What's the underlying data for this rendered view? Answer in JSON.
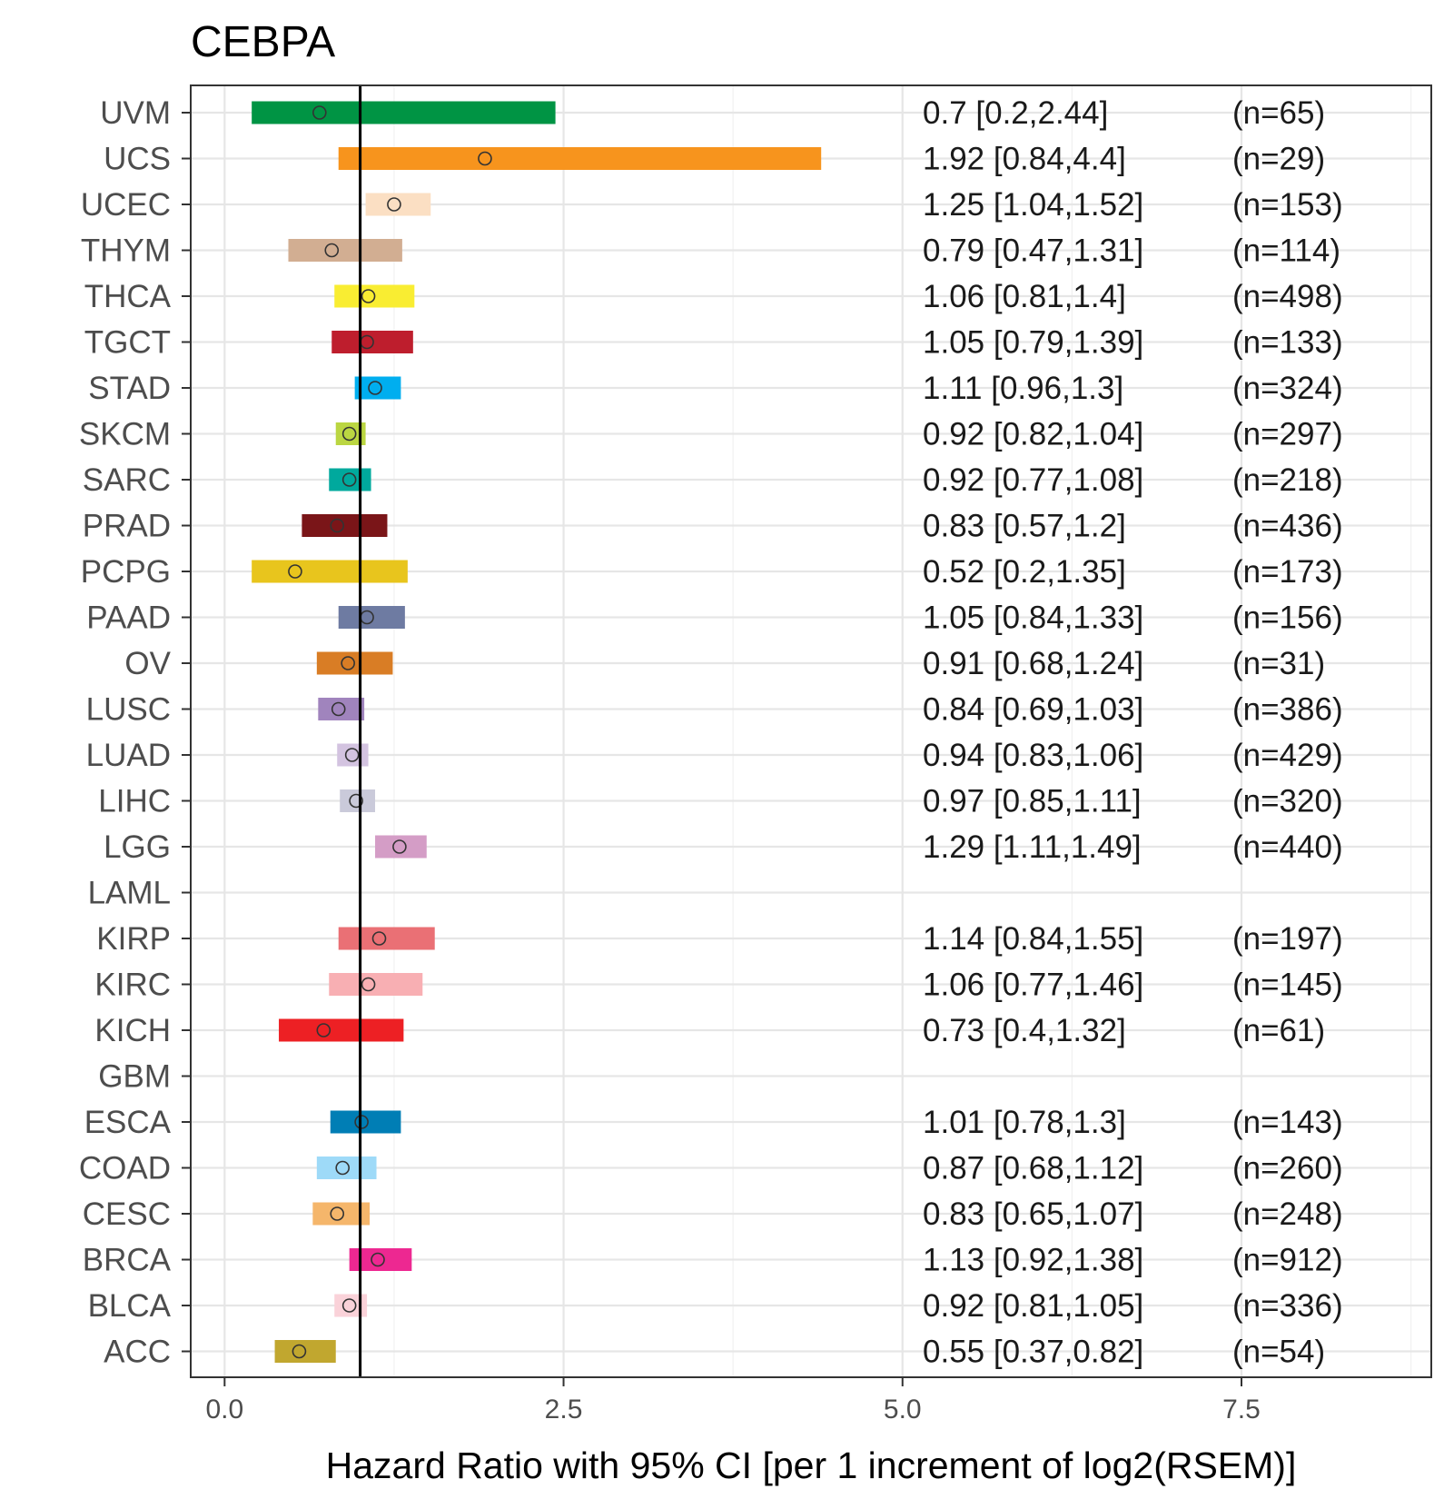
{
  "chart_data": {
    "type": "forest",
    "title": "CEBPA",
    "xlabel": "Hazard Ratio with 95% CI [per 1 increment of log2(RSEM)]",
    "ylabel": "",
    "xlim": [
      -0.25,
      8.9
    ],
    "xticks": [
      0.0,
      2.5,
      5.0,
      7.5
    ],
    "xtick_labels": [
      "0.0",
      "2.5",
      "5.0",
      "7.5"
    ],
    "minor_xticks": [
      1.25,
      3.75,
      6.25,
      8.75
    ],
    "reference_line": 1,
    "grid": true,
    "rows": [
      {
        "label": "UVM",
        "hr": 0.7,
        "lo": 0.2,
        "hi": 2.44,
        "text": "0.7 [0.2,2.44]",
        "n": "(n=65)",
        "color": "#009444"
      },
      {
        "label": "UCS",
        "hr": 1.92,
        "lo": 0.84,
        "hi": 4.4,
        "text": "1.92 [0.84,4.4]",
        "n": "(n=29)",
        "color": "#f7941d"
      },
      {
        "label": "UCEC",
        "hr": 1.25,
        "lo": 1.04,
        "hi": 1.52,
        "text": "1.25 [1.04,1.52]",
        "n": "(n=153)",
        "color": "#fbdfc3"
      },
      {
        "label": "THYM",
        "hr": 0.79,
        "lo": 0.47,
        "hi": 1.31,
        "text": "0.79 [0.47,1.31]",
        "n": "(n=114)",
        "color": "#d2ae92"
      },
      {
        "label": "THCA",
        "hr": 1.06,
        "lo": 0.81,
        "hi": 1.4,
        "text": "1.06 [0.81,1.4]",
        "n": "(n=498)",
        "color": "#f9ed32"
      },
      {
        "label": "TGCT",
        "hr": 1.05,
        "lo": 0.79,
        "hi": 1.39,
        "text": "1.05 [0.79,1.39]",
        "n": "(n=133)",
        "color": "#be1e2d"
      },
      {
        "label": "STAD",
        "hr": 1.11,
        "lo": 0.96,
        "hi": 1.3,
        "text": "1.11 [0.96,1.3]",
        "n": "(n=324)",
        "color": "#00aeef"
      },
      {
        "label": "SKCM",
        "hr": 0.92,
        "lo": 0.82,
        "hi": 1.04,
        "text": "0.92 [0.82,1.04]",
        "n": "(n=297)",
        "color": "#bbd642"
      },
      {
        "label": "SARC",
        "hr": 0.92,
        "lo": 0.77,
        "hi": 1.08,
        "text": "0.92 [0.77,1.08]",
        "n": "(n=218)",
        "color": "#00a99d"
      },
      {
        "label": "PRAD",
        "hr": 0.83,
        "lo": 0.57,
        "hi": 1.2,
        "text": "0.83 [0.57,1.2]",
        "n": "(n=436)",
        "color": "#7a1518"
      },
      {
        "label": "PCPG",
        "hr": 0.52,
        "lo": 0.2,
        "hi": 1.35,
        "text": "0.52 [0.2,1.35]",
        "n": "(n=173)",
        "color": "#e8c51d"
      },
      {
        "label": "PAAD",
        "hr": 1.05,
        "lo": 0.84,
        "hi": 1.33,
        "text": "1.05 [0.84,1.33]",
        "n": "(n=156)",
        "color": "#6e7ba2"
      },
      {
        "label": "OV",
        "hr": 0.91,
        "lo": 0.68,
        "hi": 1.24,
        "text": "0.91 [0.68,1.24]",
        "n": "(n=31)",
        "color": "#d97d25"
      },
      {
        "label": "LUSC",
        "hr": 0.84,
        "lo": 0.69,
        "hi": 1.03,
        "text": "0.84 [0.69,1.03]",
        "n": "(n=386)",
        "color": "#a084bd"
      },
      {
        "label": "LUAD",
        "hr": 0.94,
        "lo": 0.83,
        "hi": 1.06,
        "text": "0.94 [0.83,1.06]",
        "n": "(n=429)",
        "color": "#d3c3e0"
      },
      {
        "label": "LIHC",
        "hr": 0.97,
        "lo": 0.85,
        "hi": 1.11,
        "text": "0.97 [0.85,1.11]",
        "n": "(n=320)",
        "color": "#cacada"
      },
      {
        "label": "LGG",
        "hr": 1.29,
        "lo": 1.11,
        "hi": 1.49,
        "text": "1.29 [1.11,1.49]",
        "n": "(n=440)",
        "color": "#d49dc6"
      },
      {
        "label": "LAML",
        "hr": null,
        "lo": null,
        "hi": null,
        "text": "",
        "n": "",
        "color": "#754c29"
      },
      {
        "label": "KIRP",
        "hr": 1.14,
        "lo": 0.84,
        "hi": 1.55,
        "text": "1.14 [0.84,1.55]",
        "n": "(n=197)",
        "color": "#ea7075"
      },
      {
        "label": "KIRC",
        "hr": 1.06,
        "lo": 0.77,
        "hi": 1.46,
        "text": "1.06 [0.77,1.46]",
        "n": "(n=145)",
        "color": "#f8afb3"
      },
      {
        "label": "KICH",
        "hr": 0.73,
        "lo": 0.4,
        "hi": 1.32,
        "text": "0.73 [0.4,1.32]",
        "n": "(n=61)",
        "color": "#ed2024"
      },
      {
        "label": "GBM",
        "hr": null,
        "lo": null,
        "hi": null,
        "text": "",
        "n": "",
        "color": "#b2509e"
      },
      {
        "label": "ESCA",
        "hr": 1.01,
        "lo": 0.78,
        "hi": 1.3,
        "text": "1.01 [0.78,1.3]",
        "n": "(n=143)",
        "color": "#007eb5"
      },
      {
        "label": "COAD",
        "hr": 0.87,
        "lo": 0.68,
        "hi": 1.12,
        "text": "0.87 [0.68,1.12]",
        "n": "(n=260)",
        "color": "#9edaf8"
      },
      {
        "label": "CESC",
        "hr": 0.83,
        "lo": 0.65,
        "hi": 1.07,
        "text": "0.83 [0.65,1.07]",
        "n": "(n=248)",
        "color": "#f5b66b"
      },
      {
        "label": "BRCA",
        "hr": 1.13,
        "lo": 0.92,
        "hi": 1.38,
        "text": "1.13 [0.92,1.38]",
        "n": "(n=912)",
        "color": "#ed2891"
      },
      {
        "label": "BLCA",
        "hr": 0.92,
        "lo": 0.81,
        "hi": 1.05,
        "text": "0.92 [0.81,1.05]",
        "n": "(n=336)",
        "color": "#fad2d9"
      },
      {
        "label": "ACC",
        "hr": 0.55,
        "lo": 0.37,
        "hi": 0.82,
        "text": "0.55 [0.37,0.82]",
        "n": "(n=54)",
        "color": "#c1a72f"
      }
    ]
  }
}
